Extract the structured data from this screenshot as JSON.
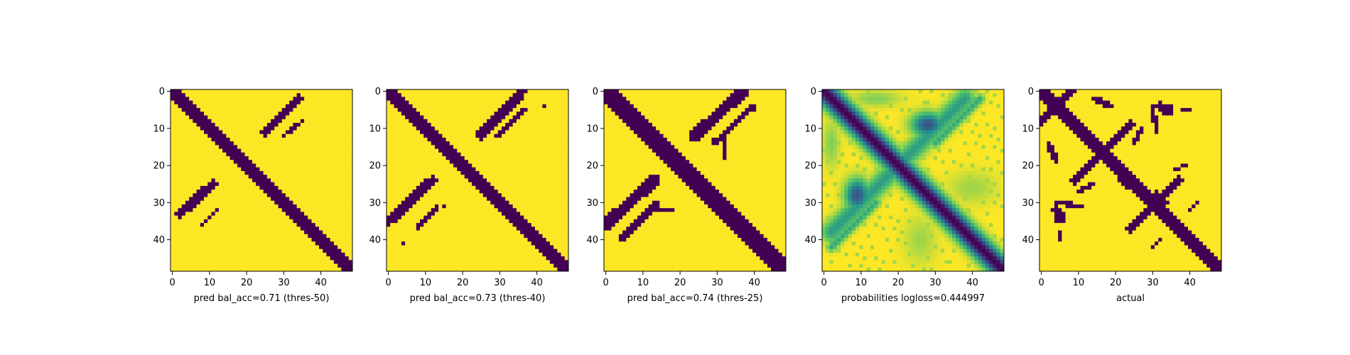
{
  "figure": {
    "background": "#ffffff"
  },
  "chart_data": [
    {
      "type": "heatmap",
      "xlabel": "pred bal_acc=0.71 (thres-50)",
      "grid_size": 49,
      "xticks": [
        0,
        10,
        20,
        30,
        40
      ],
      "yticks": [
        0,
        10,
        20,
        30,
        40
      ],
      "colors": {
        "low": "#440154",
        "high": "#fde725"
      },
      "features": [
        {
          "kind": "band",
          "from": [
            0,
            0
          ],
          "to": [
            48,
            48
          ],
          "halfwidth": 1.8,
          "value": 0
        },
        {
          "kind": "band",
          "from": [
            25,
            11
          ],
          "to": [
            34,
            2
          ],
          "halfwidth": 1.3,
          "value": 0
        },
        {
          "kind": "band",
          "from": [
            30,
            12
          ],
          "to": [
            35,
            8
          ],
          "halfwidth": 0.6,
          "value": 0
        },
        {
          "kind": "band",
          "from": [
            2,
            33
          ],
          "to": [
            11,
            25
          ],
          "halfwidth": 1.3,
          "value": 0
        },
        {
          "kind": "band",
          "from": [
            8,
            36
          ],
          "to": [
            12,
            32
          ],
          "halfwidth": 0.6,
          "value": 0
        }
      ]
    },
    {
      "type": "heatmap",
      "xlabel": "pred bal_acc=0.73 (thres-40)",
      "grid_size": 49,
      "xticks": [
        0,
        10,
        20,
        30,
        40
      ],
      "yticks": [
        0,
        10,
        20,
        30,
        40
      ],
      "colors": {
        "low": "#440154",
        "high": "#fde725"
      },
      "features": [
        {
          "kind": "band",
          "from": [
            0,
            0
          ],
          "to": [
            48,
            48
          ],
          "halfwidth": 2.0,
          "value": 0
        },
        {
          "kind": "band",
          "from": [
            25,
            12
          ],
          "to": [
            36,
            0
          ],
          "halfwidth": 1.4,
          "value": 0
        },
        {
          "kind": "band",
          "from": [
            29,
            12
          ],
          "to": [
            37,
            5
          ],
          "halfwidth": 0.7,
          "value": 0
        },
        {
          "kind": "band",
          "from": [
            0,
            35
          ],
          "to": [
            12,
            24
          ],
          "halfwidth": 1.4,
          "value": 0
        },
        {
          "kind": "band",
          "from": [
            8,
            37
          ],
          "to": [
            13,
            31
          ],
          "halfwidth": 0.7,
          "value": 0
        },
        {
          "kind": "dot",
          "at": [
            4,
            41
          ],
          "value": 0
        },
        {
          "kind": "dot",
          "at": [
            42,
            4
          ],
          "value": 0
        },
        {
          "kind": "dot",
          "at": [
            15,
            31
          ],
          "value": 0
        },
        {
          "kind": "dot",
          "at": [
            24,
            11
          ],
          "value": 0
        }
      ]
    },
    {
      "type": "heatmap",
      "xlabel": "pred bal_acc=0.74 (thres-25)",
      "grid_size": 49,
      "xticks": [
        0,
        10,
        20,
        30,
        40
      ],
      "yticks": [
        0,
        10,
        20,
        30,
        40
      ],
      "colors": {
        "low": "#440154",
        "high": "#fde725"
      },
      "features": [
        {
          "kind": "band",
          "from": [
            0,
            0
          ],
          "to": [
            48,
            48
          ],
          "halfwidth": 2.3,
          "value": 0
        },
        {
          "kind": "band",
          "from": [
            24,
            12
          ],
          "to": [
            37,
            0
          ],
          "halfwidth": 1.6,
          "value": 0
        },
        {
          "kind": "band",
          "from": [
            29,
            14
          ],
          "to": [
            40,
            4
          ],
          "halfwidth": 0.8,
          "value": 0
        },
        {
          "kind": "band",
          "from": [
            0,
            36
          ],
          "to": [
            13,
            24
          ],
          "halfwidth": 1.6,
          "value": 0
        },
        {
          "kind": "band",
          "from": [
            4,
            40
          ],
          "to": [
            14,
            30
          ],
          "halfwidth": 0.8,
          "value": 0
        },
        {
          "kind": "band",
          "from": [
            12,
            32
          ],
          "to": [
            18,
            32
          ],
          "halfwidth": 0.6,
          "value": 0
        },
        {
          "kind": "band",
          "from": [
            32,
            12
          ],
          "to": [
            32,
            18
          ],
          "halfwidth": 0.6,
          "value": 0
        }
      ]
    },
    {
      "type": "heatmap",
      "xlabel": "probabilities logloss=0.444997",
      "grid_size": 49,
      "continuous": true,
      "xticks": [
        0,
        10,
        20,
        30,
        40
      ],
      "yticks": [
        0,
        10,
        20,
        30,
        40
      ],
      "colors": {
        "stops": [
          "#440154",
          "#3b528b",
          "#21918c",
          "#5ec962",
          "#fde725"
        ]
      },
      "features": [
        {
          "kind": "band",
          "from": [
            0,
            0
          ],
          "to": [
            48,
            48
          ],
          "halfwidth": 2.6,
          "value": 0.0
        },
        {
          "kind": "blob",
          "at": [
            28,
            9
          ],
          "rx": 4,
          "ry": 3,
          "value": 0.25
        },
        {
          "kind": "blob",
          "at": [
            9,
            28
          ],
          "rx": 3,
          "ry": 4,
          "value": 0.25
        },
        {
          "kind": "band",
          "from": [
            22,
            18
          ],
          "to": [
            38,
            2
          ],
          "halfwidth": 2.5,
          "value": 0.55
        },
        {
          "kind": "band",
          "from": [
            2,
            38
          ],
          "to": [
            18,
            22
          ],
          "halfwidth": 2.5,
          "value": 0.55
        },
        {
          "kind": "band",
          "from": [
            30,
            14
          ],
          "to": [
            42,
            2
          ],
          "halfwidth": 1.2,
          "value": 0.6
        },
        {
          "kind": "band",
          "from": [
            2,
            42
          ],
          "to": [
            14,
            30
          ],
          "halfwidth": 1.2,
          "value": 0.6
        },
        {
          "kind": "blob",
          "at": [
            14,
            2
          ],
          "rx": 6,
          "ry": 2,
          "value": 0.8
        },
        {
          "kind": "blob",
          "at": [
            2,
            14
          ],
          "rx": 2,
          "ry": 6,
          "value": 0.8
        },
        {
          "kind": "blob",
          "at": [
            40,
            26
          ],
          "rx": 6,
          "ry": 4,
          "value": 0.85
        },
        {
          "kind": "blob",
          "at": [
            26,
            40
          ],
          "rx": 4,
          "ry": 6,
          "value": 0.85
        }
      ]
    },
    {
      "type": "heatmap",
      "xlabel": "actual",
      "grid_size": 49,
      "xticks": [
        0,
        10,
        20,
        30,
        40
      ],
      "yticks": [
        0,
        10,
        20,
        30,
        40
      ],
      "colors": {
        "low": "#440154",
        "high": "#fde725"
      },
      "features": [
        {
          "kind": "band",
          "from": [
            0,
            0
          ],
          "to": [
            48,
            48
          ],
          "halfwidth": 1.7,
          "value": 0
        },
        {
          "kind": "band",
          "from": [
            0,
            8
          ],
          "to": [
            8,
            0
          ],
          "halfwidth": 1.2,
          "value": 0
        },
        {
          "kind": "band",
          "from": [
            9,
            24
          ],
          "to": [
            24,
            9
          ],
          "halfwidth": 1.2,
          "value": 0
        },
        {
          "kind": "band",
          "from": [
            24,
            37
          ],
          "to": [
            37,
            24
          ],
          "halfwidth": 1.2,
          "value": 0
        },
        {
          "kind": "blob",
          "at": [
            16,
            16
          ],
          "rx": 2,
          "ry": 2,
          "value": 0
        },
        {
          "kind": "blob",
          "at": [
            31,
            30
          ],
          "rx": 3,
          "ry": 3,
          "value": 0
        },
        {
          "kind": "blob",
          "at": [
            23,
            24
          ],
          "rx": 2,
          "ry": 2,
          "value": 0
        },
        {
          "kind": "band",
          "from": [
            2,
            14
          ],
          "to": [
            4,
            19
          ],
          "halfwidth": 0.8,
          "value": 0
        },
        {
          "kind": "band",
          "from": [
            14,
            2
          ],
          "to": [
            19,
            4
          ],
          "halfwidth": 0.8,
          "value": 0
        },
        {
          "kind": "band",
          "from": [
            4,
            30
          ],
          "to": [
            11,
            31
          ],
          "halfwidth": 0.7,
          "value": 0
        },
        {
          "kind": "band",
          "from": [
            30,
            4
          ],
          "to": [
            31,
            11
          ],
          "halfwidth": 0.7,
          "value": 0
        },
        {
          "kind": "blob",
          "at": [
            4,
            32
          ],
          "rx": 1.2,
          "ry": 1.2,
          "value": 0
        },
        {
          "kind": "blob",
          "at": [
            32,
            4
          ],
          "rx": 1.2,
          "ry": 1.2,
          "value": 0
        },
        {
          "kind": "blob",
          "at": [
            34,
            5
          ],
          "rx": 1.5,
          "ry": 1.5,
          "value": 0
        },
        {
          "kind": "blob",
          "at": [
            5,
            34
          ],
          "rx": 1.5,
          "ry": 1.5,
          "value": 0
        },
        {
          "kind": "band",
          "from": [
            38,
            5
          ],
          "to": [
            40,
            5
          ],
          "halfwidth": 0.6,
          "value": 0
        },
        {
          "kind": "band",
          "from": [
            5,
            38
          ],
          "to": [
            5,
            40
          ],
          "halfwidth": 0.6,
          "value": 0
        },
        {
          "kind": "band",
          "from": [
            25,
            14
          ],
          "to": [
            27,
            10
          ],
          "halfwidth": 0.6,
          "value": 0
        },
        {
          "kind": "band",
          "from": [
            14,
            25
          ],
          "to": [
            10,
            27
          ],
          "halfwidth": 0.6,
          "value": 0
        },
        {
          "kind": "band",
          "from": [
            30,
            42
          ],
          "to": [
            32,
            40
          ],
          "halfwidth": 0.7,
          "value": 0
        },
        {
          "kind": "band",
          "from": [
            42,
            30
          ],
          "to": [
            40,
            32
          ],
          "halfwidth": 0.7,
          "value": 0
        },
        {
          "kind": "band",
          "from": [
            19,
            20
          ],
          "to": [
            21,
            19
          ],
          "halfwidth": 0.6,
          "value": 0
        },
        {
          "kind": "band",
          "from": [
            36,
            21
          ],
          "to": [
            39,
            20
          ],
          "halfwidth": 0.6,
          "value": 0
        }
      ]
    }
  ]
}
